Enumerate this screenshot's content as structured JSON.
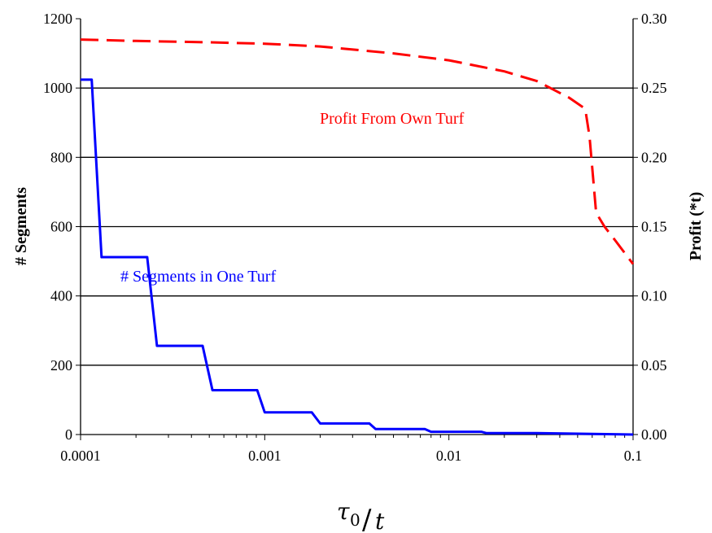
{
  "chart_data": {
    "type": "line",
    "x_scale": "log",
    "xlim": [
      0.0001,
      0.1
    ],
    "ylim_left": [
      0,
      1200
    ],
    "ylim_right": [
      0,
      0.3
    ],
    "grid": "horizontal",
    "x_ticks": [
      "0.0001",
      "0.001",
      "0.01",
      "0.1"
    ],
    "y_left_ticks": [
      "0",
      "200",
      "400",
      "600",
      "800",
      "1000",
      "1200"
    ],
    "y_right_ticks": [
      "0.00",
      "0.05",
      "0.10",
      "0.15",
      "0.20",
      "0.25",
      "0.30"
    ],
    "ylabel_left": "# Segments",
    "ylabel_right": "Profit (*t)",
    "xlabel": {
      "tau": "τ",
      "sub": "0",
      "slash": "/",
      "t": "t"
    },
    "series": [
      {
        "name": "# Segments in One Turf",
        "axis": "left",
        "color": "#0000ff",
        "style": "solid",
        "x": [
          0.0001,
          0.000115,
          0.00013,
          0.00023,
          0.00026,
          0.00046,
          0.00052,
          0.00091,
          0.001,
          0.0018,
          0.002,
          0.0037,
          0.004,
          0.0074,
          0.008,
          0.015,
          0.016,
          0.03,
          0.1
        ],
        "y": [
          1024,
          1024,
          512,
          512,
          256,
          256,
          128,
          128,
          64,
          64,
          32,
          32,
          16,
          16,
          8,
          8,
          4,
          4,
          0
        ]
      },
      {
        "name": "Profit From Own Turf",
        "axis": "right",
        "color": "#ff0000",
        "style": "dashed",
        "x": [
          0.0001,
          0.0002,
          0.0005,
          0.001,
          0.002,
          0.005,
          0.01,
          0.02,
          0.03,
          0.045,
          0.055,
          0.058,
          0.063,
          0.07,
          0.08,
          0.1
        ],
        "y": [
          0.285,
          0.284,
          0.283,
          0.282,
          0.28,
          0.275,
          0.27,
          0.262,
          0.255,
          0.243,
          0.235,
          0.215,
          0.16,
          0.15,
          0.14,
          0.123
        ]
      }
    ]
  }
}
